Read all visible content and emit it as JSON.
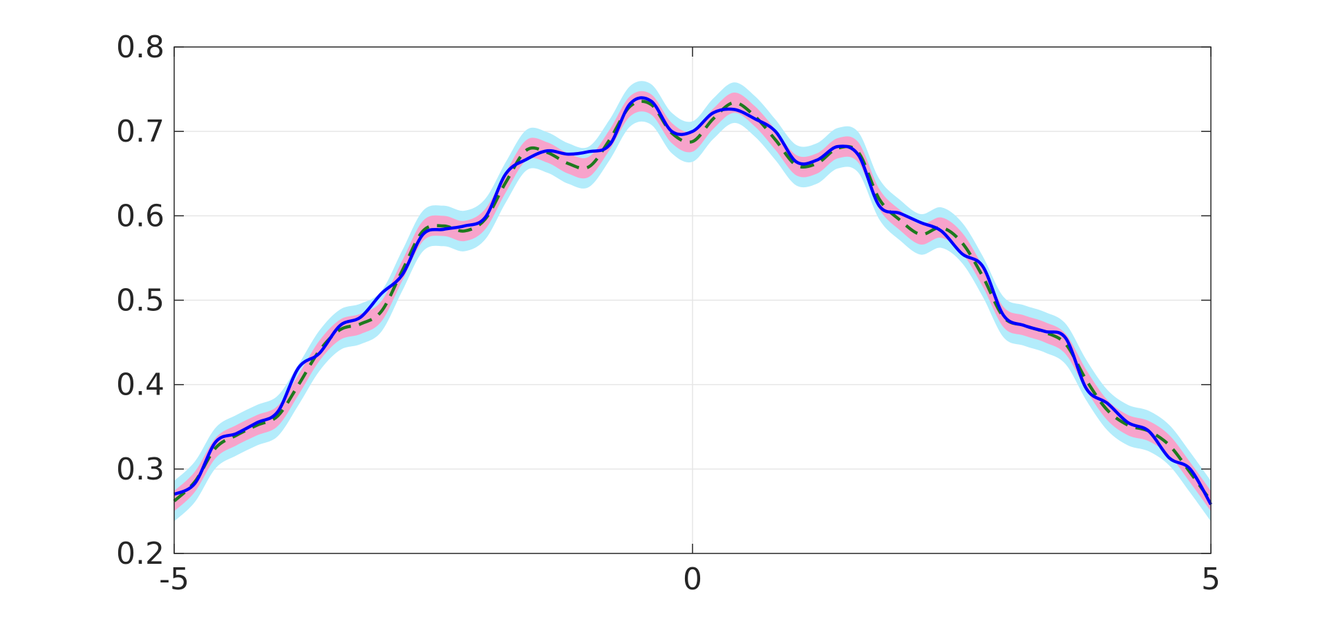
{
  "chart_data": {
    "type": "line",
    "title": "",
    "xlabel": "",
    "ylabel": "",
    "xlim": [
      -5,
      5
    ],
    "ylim": [
      0.2,
      0.8
    ],
    "xticks": [
      -5,
      0,
      5
    ],
    "xtick_labels": [
      "-5",
      "0",
      "5"
    ],
    "yticks": [
      0.2,
      0.3,
      0.4,
      0.5,
      0.6,
      0.7,
      0.8
    ],
    "ytick_labels": [
      "0.2",
      "0.3",
      "0.4",
      "0.5",
      "0.6",
      "0.7",
      "0.8"
    ],
    "grid": true,
    "legend": null,
    "x": [
      -5.0,
      -4.8,
      -4.6,
      -4.4,
      -4.2,
      -4.0,
      -3.8,
      -3.6,
      -3.4,
      -3.2,
      -3.0,
      -2.8,
      -2.6,
      -2.4,
      -2.2,
      -2.0,
      -1.8,
      -1.6,
      -1.4,
      -1.2,
      -1.0,
      -0.8,
      -0.6,
      -0.4,
      -0.2,
      0.0,
      0.2,
      0.4,
      0.6,
      0.8,
      1.0,
      1.2,
      1.4,
      1.6,
      1.8,
      2.0,
      2.2,
      2.4,
      2.6,
      2.8,
      3.0,
      3.2,
      3.4,
      3.6,
      3.8,
      4.0,
      4.2,
      4.4,
      4.6,
      4.8,
      5.0
    ],
    "series": [
      {
        "style": "solid",
        "color": "#0000ff",
        "values": [
          0.27,
          0.283,
          0.332,
          0.342,
          0.355,
          0.368,
          0.42,
          0.437,
          0.47,
          0.48,
          0.508,
          0.53,
          0.578,
          0.584,
          0.588,
          0.598,
          0.65,
          0.667,
          0.677,
          0.673,
          0.676,
          0.684,
          0.733,
          0.736,
          0.7,
          0.7,
          0.722,
          0.726,
          0.715,
          0.7,
          0.664,
          0.666,
          0.682,
          0.672,
          0.612,
          0.603,
          0.592,
          0.582,
          0.555,
          0.54,
          0.482,
          0.47,
          0.463,
          0.455,
          0.395,
          0.378,
          0.355,
          0.345,
          0.313,
          0.3,
          0.258
        ]
      },
      {
        "style": "dashed",
        "color": "#1e7a1e",
        "values": [
          0.262,
          0.285,
          0.325,
          0.34,
          0.352,
          0.363,
          0.4,
          0.44,
          0.465,
          0.472,
          0.487,
          0.535,
          0.582,
          0.588,
          0.582,
          0.596,
          0.64,
          0.678,
          0.675,
          0.662,
          0.658,
          0.69,
          0.73,
          0.732,
          0.698,
          0.688,
          0.715,
          0.734,
          0.718,
          0.69,
          0.66,
          0.662,
          0.68,
          0.675,
          0.62,
          0.595,
          0.578,
          0.586,
          0.568,
          0.528,
          0.48,
          0.47,
          0.462,
          0.448,
          0.405,
          0.37,
          0.352,
          0.345,
          0.328,
          0.296,
          0.262
        ]
      }
    ],
    "bands": [
      {
        "name": "",
        "color": "#b3ecfb",
        "halfwidth": 0.024
      },
      {
        "name": "",
        "color": "#f7a3cb",
        "halfwidth": 0.012
      }
    ]
  }
}
